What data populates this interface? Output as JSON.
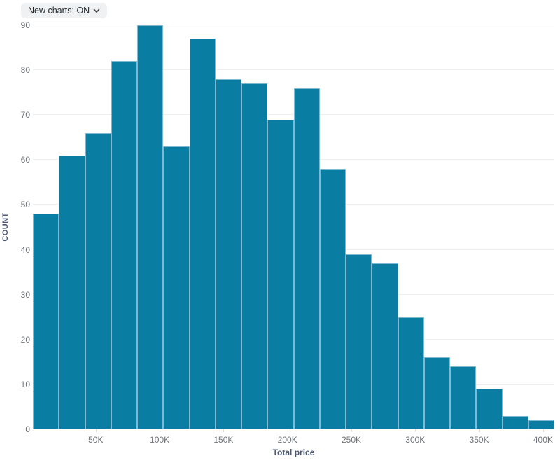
{
  "controls": {
    "new_charts_toggle": {
      "label": "New charts: ON",
      "icon": "chevron-down"
    }
  },
  "chart_data": {
    "type": "bar",
    "subtype": "histogram",
    "title": "",
    "xlabel": "Total price",
    "ylabel": "COUNT",
    "n_bins": 20,
    "values": [
      48,
      61,
      66,
      82,
      90,
      63,
      87,
      78,
      77,
      69,
      76,
      58,
      39,
      37,
      25,
      16,
      14,
      9,
      3,
      2
    ],
    "y_ticks": [
      0,
      10,
      20,
      30,
      40,
      50,
      60,
      70,
      80,
      90
    ],
    "ylim": [
      0,
      90
    ],
    "x_ticks": [
      {
        "value_k": 50,
        "label": "50K"
      },
      {
        "value_k": 100,
        "label": "100K"
      },
      {
        "value_k": 150,
        "label": "150K"
      },
      {
        "value_k": 200,
        "label": "200K"
      },
      {
        "value_k": 250,
        "label": "250K"
      },
      {
        "value_k": 300,
        "label": "300K"
      },
      {
        "value_k": 350,
        "label": "350K"
      },
      {
        "value_k": 400,
        "label": "400K"
      }
    ],
    "legend": null,
    "grid": true,
    "colors": {
      "bar_fill": "#0a7da2",
      "bar_border": "#7fb8d1",
      "gridline": "#eeeeee",
      "axis_line": "#e2e2e2",
      "tick_text": "#6f7479",
      "axis_title_text": "#4c5773"
    }
  }
}
